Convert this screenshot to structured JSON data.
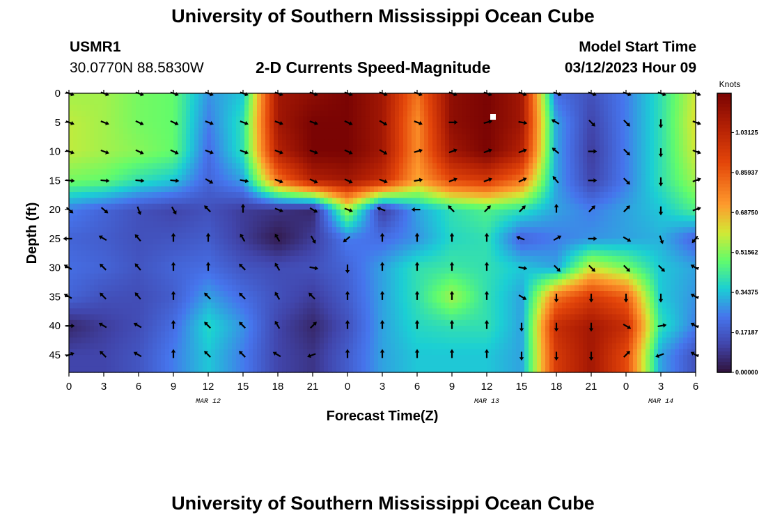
{
  "header": {
    "title": "University of Southern Mississippi Ocean Cube",
    "station": "USMR1",
    "coords": "30.0770N  88.5830W",
    "subtitle": "2-D Currents Speed-Magnitude",
    "model_start_label": "Model Start Time",
    "model_start_value": "03/12/2023 Hour 09"
  },
  "footer": {
    "title": "University of Southern Mississippi Ocean Cube"
  },
  "chart_data": {
    "type": "heatmap",
    "xlabel": "Forecast Time(Z)",
    "ylabel": "Depth (ft)",
    "x_tick_labels": [
      "0",
      "3",
      "6",
      "9",
      "12",
      "15",
      "18",
      "21",
      "0",
      "3",
      "6",
      "9",
      "12",
      "15",
      "18",
      "21",
      "0",
      "3",
      "6"
    ],
    "date_labels": [
      {
        "label": "MAR 12",
        "tick_index": 4
      },
      {
        "label": "MAR 13",
        "tick_index": 12
      },
      {
        "label": "MAR 14",
        "tick_index": 17
      }
    ],
    "y_ticks": [
      0,
      5,
      10,
      15,
      20,
      25,
      30,
      35,
      40,
      45
    ],
    "ylim": [
      0,
      48
    ],
    "colorbar": {
      "title": "Knots",
      "min": 0.0,
      "max": 1.2,
      "tick_labels": [
        "1.03125",
        "0.85937",
        "0.68750",
        "0.51562",
        "0.34375",
        "0.17187",
        "0.00000"
      ],
      "tick_values": [
        1.03125,
        0.859375,
        0.6875,
        0.515625,
        0.34375,
        0.171875,
        0.0
      ]
    },
    "depths": [
      0,
      5,
      10,
      15,
      20,
      25,
      30,
      35,
      40,
      45
    ],
    "arrow_columns": 19,
    "speed_knots": [
      [
        0.55,
        0.55,
        0.5,
        0.48,
        0.28,
        0.35,
        1.1,
        1.15,
        1.2,
        1.1,
        0.8,
        1.15,
        1.2,
        1.1,
        0.22,
        0.15,
        0.25,
        0.4,
        0.6
      ],
      [
        0.58,
        0.55,
        0.5,
        0.48,
        0.25,
        0.4,
        1.1,
        1.2,
        1.2,
        1.1,
        0.75,
        1.15,
        1.2,
        1.1,
        0.3,
        0.12,
        0.25,
        0.4,
        0.62
      ],
      [
        0.58,
        0.55,
        0.52,
        0.48,
        0.22,
        0.4,
        1.05,
        1.2,
        1.2,
        1.1,
        0.75,
        1.1,
        1.2,
        1.05,
        0.3,
        0.1,
        0.25,
        0.4,
        0.6
      ],
      [
        0.5,
        0.48,
        0.4,
        0.35,
        0.2,
        0.3,
        0.8,
        1.05,
        1.1,
        1.0,
        0.7,
        0.9,
        0.95,
        0.8,
        0.3,
        0.12,
        0.25,
        0.4,
        0.55
      ],
      [
        0.25,
        0.2,
        0.15,
        0.12,
        0.15,
        0.1,
        0.08,
        0.05,
        0.55,
        0.1,
        0.3,
        0.4,
        0.45,
        0.4,
        0.3,
        0.25,
        0.3,
        0.35,
        0.45
      ],
      [
        0.2,
        0.18,
        0.15,
        0.16,
        0.18,
        0.1,
        0.02,
        0.1,
        0.25,
        0.22,
        0.28,
        0.38,
        0.4,
        0.2,
        0.25,
        0.28,
        0.3,
        0.32,
        0.2
      ],
      [
        0.22,
        0.2,
        0.16,
        0.2,
        0.22,
        0.16,
        0.14,
        0.15,
        0.2,
        0.3,
        0.4,
        0.42,
        0.4,
        0.35,
        0.3,
        0.6,
        0.5,
        0.35,
        0.3
      ],
      [
        0.2,
        0.15,
        0.14,
        0.18,
        0.3,
        0.22,
        0.15,
        0.1,
        0.18,
        0.3,
        0.4,
        0.55,
        0.4,
        0.3,
        0.8,
        0.95,
        0.85,
        0.35,
        0.28
      ],
      [
        0.05,
        0.1,
        0.14,
        0.22,
        0.38,
        0.28,
        0.12,
        0.05,
        0.15,
        0.3,
        0.38,
        0.4,
        0.4,
        0.3,
        1.0,
        1.1,
        1.0,
        0.4,
        0.25
      ],
      [
        0.12,
        0.12,
        0.16,
        0.25,
        0.35,
        0.25,
        0.12,
        0.08,
        0.18,
        0.3,
        0.35,
        0.35,
        0.35,
        0.3,
        0.95,
        1.1,
        0.9,
        0.3,
        0.15
      ]
    ],
    "direction_deg": [
      [
        110,
        110,
        110,
        110,
        110,
        110,
        110,
        110,
        110,
        110,
        110,
        110,
        110,
        110,
        110,
        110,
        110,
        110,
        110
      ],
      [
        110,
        110,
        115,
        115,
        110,
        110,
        110,
        110,
        115,
        120,
        110,
        90,
        75,
        100,
        300,
        135,
        135,
        180,
        110
      ],
      [
        110,
        110,
        115,
        115,
        110,
        110,
        110,
        110,
        115,
        120,
        75,
        70,
        70,
        70,
        310,
        90,
        135,
        180,
        110
      ],
      [
        95,
        95,
        95,
        95,
        120,
        100,
        110,
        115,
        115,
        110,
        80,
        70,
        70,
        65,
        320,
        90,
        135,
        180,
        70
      ],
      [
        130,
        130,
        160,
        150,
        315,
        0,
        110,
        120,
        110,
        290,
        270,
        315,
        45,
        45,
        0,
        45,
        45,
        180,
        70
      ],
      [
        270,
        300,
        320,
        0,
        0,
        330,
        330,
        150,
        230,
        0,
        0,
        0,
        0,
        290,
        60,
        90,
        120,
        160,
        220
      ],
      [
        300,
        315,
        320,
        0,
        0,
        315,
        330,
        100,
        180,
        0,
        0,
        0,
        0,
        100,
        135,
        135,
        135,
        135,
        300
      ],
      [
        300,
        315,
        320,
        0,
        315,
        315,
        330,
        315,
        0,
        0,
        0,
        0,
        0,
        120,
        180,
        180,
        180,
        180,
        300
      ],
      [
        90,
        300,
        300,
        0,
        315,
        315,
        330,
        45,
        0,
        0,
        0,
        0,
        0,
        180,
        180,
        180,
        120,
        80,
        300
      ],
      [
        70,
        315,
        300,
        0,
        315,
        315,
        300,
        250,
        0,
        0,
        0,
        0,
        0,
        180,
        180,
        180,
        45,
        250,
        300
      ]
    ]
  }
}
